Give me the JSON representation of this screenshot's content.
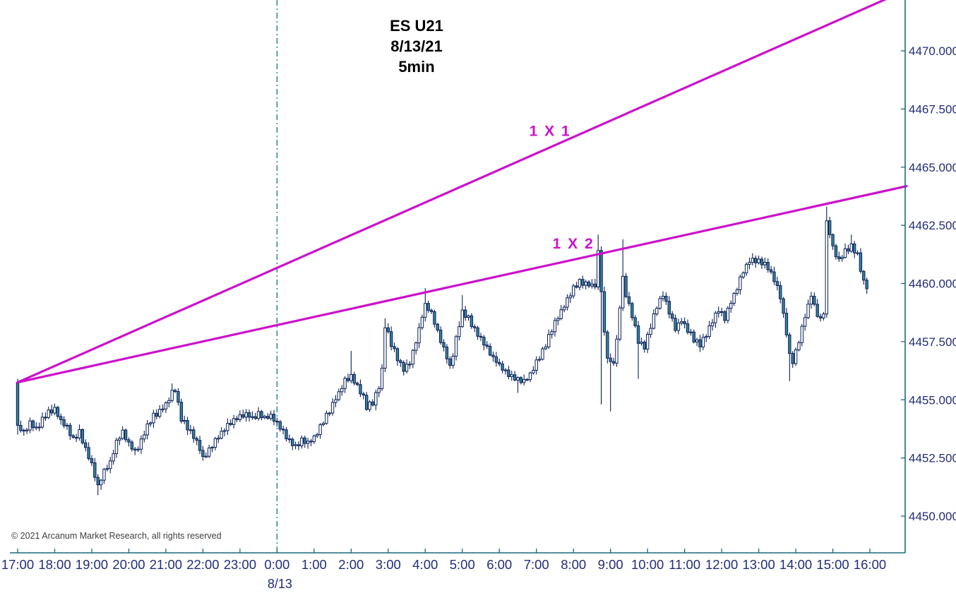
{
  "title": {
    "symbol": "ES U21",
    "date": "8/13/21",
    "interval": "5min"
  },
  "copyright": "© 2021 Arcanum Market Research, all rights reserved",
  "colors": {
    "gann_magenta": "#cc11cc",
    "candle_up_fill": "#ffffff",
    "candle_down_fill": "#36809b",
    "candle_outline": "#0d2157",
    "axis_teal": "#1a6b7a",
    "divider_teal": "#1a7f8a",
    "label_navy": "#232d78",
    "title_black": "#000000",
    "copyright_gray": "#3f3f3f"
  },
  "chart_data": {
    "type": "ohlc-candle",
    "instrument": "ES U21",
    "session_date": "8/13/21",
    "bar_interval_minutes": 5,
    "x_axis": {
      "labels": [
        "17:00",
        "18:00",
        "19:00",
        "20:00",
        "21:00",
        "22:00",
        "23:00",
        "0:00",
        "1:00",
        "2:00",
        "3:00",
        "4:00",
        "5:00",
        "6:00",
        "7:00",
        "8:00",
        "9:00",
        "10:00",
        "11:00",
        "12:00",
        "13:00",
        "14:00",
        "15:00",
        "16:00"
      ],
      "date_label": "8/13",
      "date_label_under": "0:00",
      "hours_span": 23
    },
    "y_axis": {
      "ticks": [
        {
          "label": "4470.0000",
          "price": 4470.0
        },
        {
          "label": "4467.5000",
          "price": 4467.5
        },
        {
          "label": "4465.0000",
          "price": 4465.0
        },
        {
          "label": "4462.5000",
          "price": 4462.5
        },
        {
          "label": "4460.0000",
          "price": 4460.0
        },
        {
          "label": "4457.5000",
          "price": 4457.5
        },
        {
          "label": "4455.0000",
          "price": 4455.0
        },
        {
          "label": "4452.5000",
          "price": 4452.5
        },
        {
          "label": "4450.0000",
          "price": 4450.0
        }
      ],
      "visible_range": [
        4448.4,
        4472.2
      ]
    },
    "session_divider": {
      "at_label": "0:00",
      "t_hours": 7,
      "style": "dash-dot"
    },
    "gann_fan": {
      "origin": {
        "t_hours": 0,
        "price": 4455.75
      },
      "lines": [
        {
          "label": "1 X 1",
          "slope_points_per_hour": 0.703,
          "label_t": 14.37
        },
        {
          "label": "1 X 2",
          "slope_points_per_hour": 0.3515,
          "label_t": 15.0
        }
      ]
    },
    "first_bar": {
      "open": 4455.75,
      "high": 4455.9,
      "low": 4453.5,
      "close": 4453.9
    },
    "price_keyframes": [
      [
        0.083,
        4453.9
      ],
      [
        0.25,
        4453.6
      ],
      [
        0.417,
        4454.0
      ],
      [
        0.583,
        4453.7
      ],
      [
        0.75,
        4454.2
      ],
      [
        0.917,
        4454.5
      ],
      [
        1.083,
        4454.6
      ],
      [
        1.25,
        4454.1
      ],
      [
        1.417,
        4453.8
      ],
      [
        1.583,
        4453.3
      ],
      [
        1.75,
        4453.6
      ],
      [
        1.917,
        4452.9
      ],
      [
        2.083,
        4452.2
      ],
      [
        2.25,
        4451.3
      ],
      [
        2.417,
        4451.9
      ],
      [
        2.583,
        4452.3
      ],
      [
        2.75,
        4453.2
      ],
      [
        2.917,
        4453.6
      ],
      [
        3.083,
        4453.1
      ],
      [
        3.25,
        4452.8
      ],
      [
        3.417,
        4453.2
      ],
      [
        3.583,
        4453.9
      ],
      [
        3.75,
        4454.3
      ],
      [
        3.917,
        4454.5
      ],
      [
        4.083,
        4454.8
      ],
      [
        4.25,
        4455.3
      ],
      [
        4.333,
        4455.4
      ],
      [
        4.5,
        4454.2
      ],
      [
        4.667,
        4453.8
      ],
      [
        4.833,
        4453.4
      ],
      [
        5.0,
        4452.9
      ],
      [
        5.083,
        4452.5
      ],
      [
        5.25,
        4452.8
      ],
      [
        5.417,
        4453.2
      ],
      [
        5.583,
        4453.6
      ],
      [
        5.75,
        4453.9
      ],
      [
        5.917,
        4454.1
      ],
      [
        6.083,
        4454.3
      ],
      [
        6.25,
        4454.4
      ],
      [
        6.417,
        4454.2
      ],
      [
        6.583,
        4454.4
      ],
      [
        6.75,
        4454.2
      ],
      [
        6.917,
        4454.3
      ],
      [
        7.083,
        4454.0
      ],
      [
        7.25,
        4453.6
      ],
      [
        7.417,
        4453.2
      ],
      [
        7.583,
        4453.0
      ],
      [
        7.75,
        4453.3
      ],
      [
        7.917,
        4453.1
      ],
      [
        8.083,
        4453.4
      ],
      [
        8.25,
        4453.8
      ],
      [
        8.417,
        4454.3
      ],
      [
        8.583,
        4454.8
      ],
      [
        8.75,
        4455.3
      ],
      [
        8.917,
        4455.8
      ],
      [
        9.083,
        4456.0
      ],
      [
        9.25,
        4455.6
      ],
      [
        9.417,
        4455.1
      ],
      [
        9.5,
        4454.7
      ],
      [
        9.667,
        4454.9
      ],
      [
        9.833,
        4455.6
      ],
      [
        9.917,
        4456.3
      ],
      [
        10.0,
        4458.2
      ],
      [
        10.167,
        4457.4
      ],
      [
        10.333,
        4456.8
      ],
      [
        10.5,
        4456.3
      ],
      [
        10.667,
        4456.6
      ],
      [
        10.833,
        4457.5
      ],
      [
        11.0,
        4458.6
      ],
      [
        11.083,
        4459.1
      ],
      [
        11.25,
        4458.7
      ],
      [
        11.417,
        4457.9
      ],
      [
        11.583,
        4457.2
      ],
      [
        11.75,
        4456.4
      ],
      [
        11.917,
        4457.6
      ],
      [
        12.083,
        4458.8
      ],
      [
        12.25,
        4458.5
      ],
      [
        12.417,
        4458.0
      ],
      [
        12.583,
        4457.6
      ],
      [
        12.75,
        4457.2
      ],
      [
        12.917,
        4456.8
      ],
      [
        13.083,
        4456.5
      ],
      [
        13.25,
        4456.2
      ],
      [
        13.417,
        4456.0
      ],
      [
        13.583,
        4455.9
      ],
      [
        13.75,
        4455.8
      ],
      [
        13.917,
        4456.1
      ],
      [
        14.083,
        4456.6
      ],
      [
        14.25,
        4457.1
      ],
      [
        14.417,
        4457.7
      ],
      [
        14.583,
        4458.3
      ],
      [
        14.75,
        4458.8
      ],
      [
        14.917,
        4459.3
      ],
      [
        15.083,
        4459.8
      ],
      [
        15.25,
        4460.1
      ],
      [
        15.417,
        4460.0
      ],
      [
        15.583,
        4459.9
      ],
      [
        15.667,
        4459.9
      ],
      [
        15.75,
        4461.3
      ],
      [
        15.833,
        4459.7
      ],
      [
        15.917,
        4457.8
      ],
      [
        16.0,
        4456.9
      ],
      [
        16.083,
        4456.6
      ],
      [
        16.167,
        4456.7
      ],
      [
        16.25,
        4457.5
      ],
      [
        16.333,
        4459.0
      ],
      [
        16.417,
        4460.2
      ],
      [
        16.5,
        4459.5
      ],
      [
        16.667,
        4458.6
      ],
      [
        16.833,
        4457.5
      ],
      [
        17.0,
        4457.3
      ],
      [
        17.167,
        4458.2
      ],
      [
        17.333,
        4459.0
      ],
      [
        17.5,
        4459.5
      ],
      [
        17.667,
        4458.8
      ],
      [
        17.833,
        4458.1
      ],
      [
        18.0,
        4458.4
      ],
      [
        18.167,
        4458.0
      ],
      [
        18.333,
        4457.6
      ],
      [
        18.5,
        4457.4
      ],
      [
        18.667,
        4457.8
      ],
      [
        18.833,
        4458.4
      ],
      [
        19.0,
        4458.9
      ],
      [
        19.167,
        4458.5
      ],
      [
        19.333,
        4459.2
      ],
      [
        19.5,
        4459.8
      ],
      [
        19.667,
        4460.5
      ],
      [
        19.833,
        4461.0
      ],
      [
        20.0,
        4461.0
      ],
      [
        20.167,
        4460.9
      ],
      [
        20.333,
        4460.7
      ],
      [
        20.5,
        4460.2
      ],
      [
        20.667,
        4459.4
      ],
      [
        20.833,
        4457.9
      ],
      [
        20.917,
        4456.9
      ],
      [
        21.0,
        4456.6
      ],
      [
        21.167,
        4457.5
      ],
      [
        21.333,
        4458.6
      ],
      [
        21.5,
        4459.5
      ],
      [
        21.583,
        4459.0
      ],
      [
        21.75,
        4458.4
      ],
      [
        21.833,
        4458.8
      ],
      [
        21.917,
        4462.6
      ],
      [
        22.0,
        4462.2
      ],
      [
        22.083,
        4461.5
      ],
      [
        22.25,
        4461.0
      ],
      [
        22.417,
        4461.4
      ],
      [
        22.583,
        4461.6
      ],
      [
        22.75,
        4461.2
      ],
      [
        22.917,
        4460.1
      ],
      [
        23.0,
        4459.9
      ]
    ],
    "wick_events": [
      {
        "t": 2.25,
        "low": 4450.9
      },
      {
        "t": 4.25,
        "high": 4455.7
      },
      {
        "t": 9.083,
        "high": 4457.1
      },
      {
        "t": 10.0,
        "high": 4458.5
      },
      {
        "t": 11.083,
        "high": 4459.8
      },
      {
        "t": 12.083,
        "high": 4459.5
      },
      {
        "t": 13.583,
        "low": 4455.3
      },
      {
        "t": 15.75,
        "high": 4462.1
      },
      {
        "t": 15.833,
        "low": 4454.8
      },
      {
        "t": 16.083,
        "low": 4454.5
      },
      {
        "t": 16.417,
        "high": 4461.9
      },
      {
        "t": 16.833,
        "low": 4455.9
      },
      {
        "t": 20.917,
        "low": 4455.8
      },
      {
        "t": 21.917,
        "high": 4463.3
      },
      {
        "t": 22.583,
        "high": 4462.1
      },
      {
        "t": 23.0,
        "low": 4459.6
      }
    ]
  }
}
